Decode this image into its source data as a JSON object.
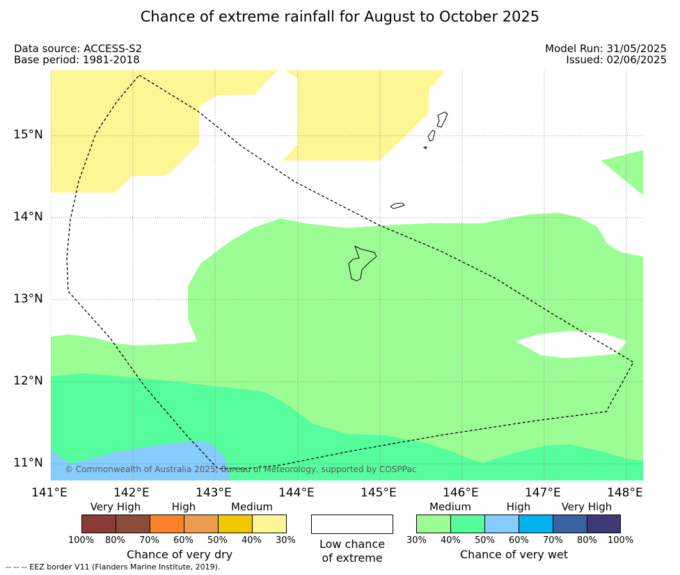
{
  "title": "Chance of extreme rainfall for August to October 2025",
  "meta": {
    "data_source": "Data source: ACCESS-S2",
    "base_period": "Base period: 1981-2018",
    "model_run": "Model Run: 31/05/2025",
    "issued": "Issued: 02/06/2025"
  },
  "map": {
    "copyright": "© Commonwealth of Australia 2025, Bureau of Meteorology, supported by COSPPac",
    "lat_ticks": [
      "15°N",
      "14°N",
      "13°N",
      "12°N",
      "11°N"
    ],
    "lon_ticks": [
      "141°E",
      "142°E",
      "143°E",
      "144°E",
      "145°E",
      "146°E",
      "147°E",
      "148°E"
    ],
    "lon_range": [
      141,
      148.2
    ],
    "lat_range": [
      10.8,
      15.8
    ],
    "colors": {
      "dry_medium": "#fdf694",
      "wet_medium": "#9cfd94",
      "wet_high_50": "#55fd9c",
      "wet_high_60": "#86ccfd",
      "outline": "#000000"
    },
    "layers": [
      "dry-medium-region-west",
      "dry-medium-region-north",
      "wet-medium-region",
      "wet-50-60-region",
      "wet-60-70-region",
      "island-outlines",
      "eez-border"
    ]
  },
  "legend": {
    "dry": {
      "categories": [
        "Very High",
        "High",
        "Medium"
      ],
      "colors": [
        "#8b3b35",
        "#8b4c3c",
        "#fd8129",
        "#ec9c4d",
        "#f0c900",
        "#fdf694"
      ],
      "percent_labels": [
        "100%",
        "80%",
        "70%",
        "60%",
        "50%",
        "40%",
        "30%"
      ],
      "title": "Chance of very dry"
    },
    "low": {
      "line1": "Low chance",
      "line2": "of extreme"
    },
    "wet": {
      "categories": [
        "Medium",
        "High",
        "Very High"
      ],
      "colors": [
        "#9cfd94",
        "#55fd9c",
        "#86ccfd",
        "#00b3f0",
        "#3a62a0",
        "#3e3a78"
      ],
      "percent_labels": [
        "30%",
        "40%",
        "50%",
        "60%",
        "70%",
        "80%",
        "100%"
      ],
      "title": "Chance of very wet"
    }
  },
  "footnote": "--  --  -- EEZ border V11 (Flanders Marine Institute, 2019)."
}
